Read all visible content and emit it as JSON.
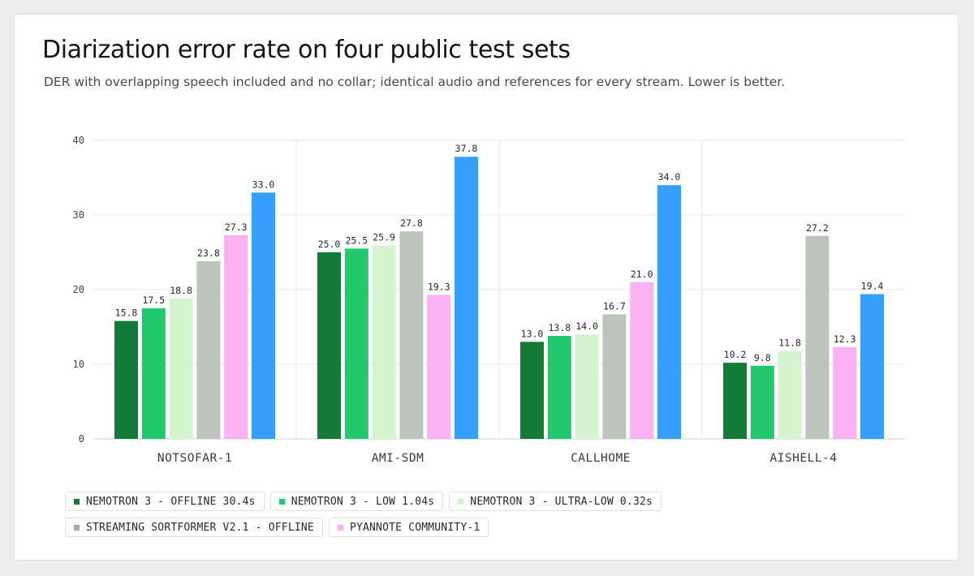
{
  "title": "Diarization error rate on four public test sets",
  "subtitle": "DER with overlapping speech included and no collar; identical audio and references for every stream. Lower is better.",
  "chart_data": {
    "type": "bar",
    "ylim": [
      0,
      40
    ],
    "yticks": [
      0,
      10,
      20,
      30,
      40
    ],
    "grid": true,
    "legend_position": "bottom",
    "categories": [
      "NOTSOFAR-1",
      "AMI-SDM",
      "CALLHOME",
      "AISHELL-4"
    ],
    "series": [
      {
        "name": "NEMOTRON 3 - OFFLINE 30.4s",
        "color": "#137a3a",
        "values": [
          15.8,
          25.0,
          13.0,
          10.2
        ]
      },
      {
        "name": "NEMOTRON 3 - LOW 1.04s",
        "color": "#22c96c",
        "values": [
          17.5,
          25.5,
          13.8,
          9.8
        ]
      },
      {
        "name": "NEMOTRON 3 - ULTRA-LOW 0.32s",
        "color": "#d4f3cf",
        "values": [
          18.8,
          25.9,
          14.0,
          11.8
        ]
      },
      {
        "name": "STREAMING SORTFORMER V2.1 - OFFLINE",
        "color": "#bcc4bb",
        "values": [
          23.8,
          27.8,
          16.7,
          27.2
        ]
      },
      {
        "name": "PYANNOTE COMMUNITY-1",
        "color": "#fbb2f3",
        "values": [
          27.3,
          19.3,
          21.0,
          12.3
        ]
      },
      {
        "name": "",
        "color": "#369ffd",
        "values": [
          33.0,
          37.8,
          34.0,
          19.4
        ]
      }
    ],
    "data_labels": [
      [
        "15.8",
        "17.5",
        "18.8",
        "23.8",
        "27.3",
        "33.0"
      ],
      [
        "25.0",
        "25.5",
        "25.9",
        "27.8",
        "19.3",
        "37.8"
      ],
      [
        "13.0",
        "13.8",
        "14.0",
        "16.7",
        "21.0",
        "34.0"
      ],
      [
        "10.2",
        "9.8",
        "11.8",
        "27.2",
        "12.3",
        "19.4"
      ]
    ]
  },
  "legend": [
    {
      "label": "NEMOTRON 3 - OFFLINE 30.4s",
      "color": "#137a3a"
    },
    {
      "label": "NEMOTRON 3 - LOW 1.04s",
      "color": "#22c96c"
    },
    {
      "label": "NEMOTRON 3 - ULTRA-LOW 0.32s",
      "color": "#d4f3cf"
    },
    {
      "label": "STREAMING SORTFORMER V2.1 - OFFLINE",
      "color": "#a6a8a6"
    },
    {
      "label": "PYANNOTE COMMUNITY-1",
      "color": "#fbb2f3"
    }
  ]
}
